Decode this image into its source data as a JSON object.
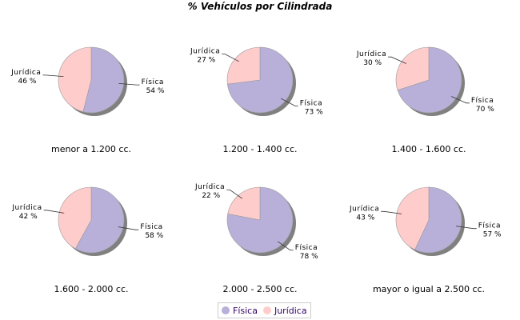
{
  "chart_data": [
    {
      "type": "pie",
      "title": "menor a 1.200 cc.",
      "slices": [
        {
          "label": "Física",
          "value": 54
        },
        {
          "label": "Jurídica",
          "value": 46
        }
      ]
    },
    {
      "type": "pie",
      "title": "1.200 - 1.400 cc.",
      "slices": [
        {
          "label": "Física",
          "value": 73
        },
        {
          "label": "Jurídica",
          "value": 27
        }
      ]
    },
    {
      "type": "pie",
      "title": "1.400 - 1.600 cc.",
      "slices": [
        {
          "label": "Física",
          "value": 70
        },
        {
          "label": "Jurídica",
          "value": 30
        }
      ]
    },
    {
      "type": "pie",
      "title": "1.600 - 2.000 cc.",
      "slices": [
        {
          "label": "Física",
          "value": 58
        },
        {
          "label": "Jurídica",
          "value": 42
        }
      ]
    },
    {
      "type": "pie",
      "title": "2.000 - 2.500 cc.",
      "slices": [
        {
          "label": "Física",
          "value": 78
        },
        {
          "label": "Jurídica",
          "value": 22
        }
      ]
    },
    {
      "type": "pie",
      "title": "mayor o igual a 2.500 cc.",
      "slices": [
        {
          "label": "Física",
          "value": 57
        },
        {
          "label": "Jurídica",
          "value": 43
        }
      ]
    }
  ],
  "title": "% Vehículos por Cilindrada",
  "legend": {
    "items": [
      "Física",
      "Jurídica"
    ],
    "placement": "bottom"
  },
  "colors": {
    "Física": "#b8b0d8",
    "Jurídica": "#ffcccc",
    "shadow": "#808080"
  },
  "unit": "%"
}
